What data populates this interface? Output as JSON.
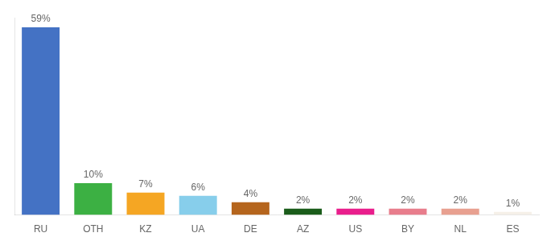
{
  "chart_data": {
    "type": "bar",
    "categories": [
      "RU",
      "OTH",
      "KZ",
      "UA",
      "DE",
      "AZ",
      "US",
      "BY",
      "NL",
      "ES"
    ],
    "values": [
      59,
      10,
      7,
      6,
      4,
      2,
      2,
      2,
      2,
      1
    ],
    "value_labels": [
      "59%",
      "10%",
      "7%",
      "6%",
      "4%",
      "2%",
      "2%",
      "2%",
      "2%",
      "1%"
    ],
    "colors": [
      "#4472c4",
      "#3cb043",
      "#f5a623",
      "#87ceeb",
      "#b5651d",
      "#1a5c1a",
      "#e91e8c",
      "#e87d8c",
      "#e8a090",
      "#f5f0e8"
    ],
    "ylim": [
      0,
      62
    ],
    "data_labels": true,
    "tick_labels": "x",
    "grid": false
  }
}
